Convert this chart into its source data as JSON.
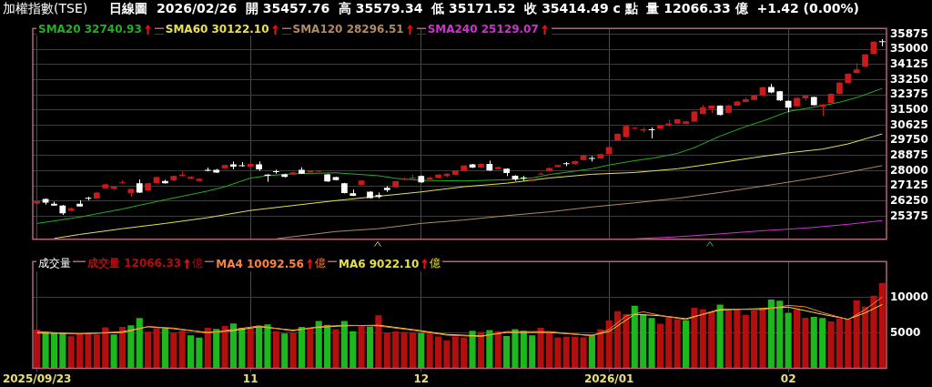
{
  "chart_data": [
    {
      "type": "candlestick",
      "title": "加權指數(TSE)",
      "subtitle": "日線圖  2026/02/26  開 35457.76  高 35579.34  低 35171.52  收 35414.49 c 點  量 12066.33 億  +1.42 (0.00%)",
      "categories": [
        "2025/09/23",
        null,
        null,
        null,
        null,
        null,
        null,
        null,
        null,
        null,
        null,
        null,
        null,
        null,
        null,
        null,
        null,
        null,
        null,
        null,
        null,
        null,
        null,
        null,
        null,
        "11",
        null,
        null,
        null,
        null,
        null,
        null,
        null,
        null,
        null,
        null,
        null,
        null,
        null,
        null,
        null,
        null,
        null,
        null,
        null,
        "12",
        null,
        null,
        null,
        null,
        null,
        null,
        null,
        null,
        null,
        null,
        null,
        null,
        null,
        null,
        null,
        null,
        null,
        null,
        null,
        null,
        null,
        "2026/01",
        null,
        null,
        null,
        null,
        null,
        null,
        null,
        null,
        null,
        null,
        null,
        null,
        null,
        null,
        null,
        null,
        null,
        null,
        null,
        null,
        "02",
        null,
        null,
        null,
        null,
        null,
        null,
        null,
        null,
        null,
        null,
        null
      ],
      "ohlc": [
        [
          26113,
          26280,
          26080,
          26247
        ],
        [
          26380,
          26400,
          26048,
          26163
        ],
        [
          26098,
          26215,
          25980,
          25998
        ],
        [
          25998,
          26020,
          25463,
          25546
        ],
        [
          25697,
          25880,
          25660,
          25830
        ],
        [
          26098,
          26297,
          25930,
          25947
        ],
        [
          26400,
          26497,
          26297,
          26390
        ],
        [
          26397,
          26780,
          26380,
          26747
        ],
        [
          26997,
          27250,
          26960,
          27213
        ],
        [
          26947,
          27100,
          26880,
          27080
        ],
        [
          27280,
          27447,
          27260,
          27330
        ],
        [
          26697,
          26980,
          26497,
          26947
        ],
        [
          27280,
          27497,
          26720,
          26747
        ],
        [
          26864,
          27300,
          26800,
          27280
        ],
        [
          27297,
          27660,
          27280,
          27630
        ],
        [
          27413,
          27480,
          27260,
          27280
        ],
        [
          27430,
          27720,
          27400,
          27697
        ],
        [
          27697,
          27947,
          27680,
          27780
        ],
        [
          27547,
          27680,
          27520,
          27647
        ],
        [
          27413,
          27570,
          27390,
          27547
        ],
        [
          28015,
          28180,
          27965,
          28000
        ],
        [
          28047,
          28100,
          27880,
          27897
        ],
        [
          28147,
          28350,
          28120,
          28330
        ],
        [
          28364,
          28530,
          28080,
          28230
        ],
        [
          28280,
          28497,
          28230,
          28265
        ],
        [
          28230,
          28420,
          28200,
          28397
        ],
        [
          28364,
          28530,
          27997,
          28080
        ],
        [
          27780,
          27800,
          27363,
          27713
        ],
        [
          27930,
          28063,
          27830,
          27920
        ],
        [
          27797,
          27830,
          27620,
          27647
        ],
        [
          27780,
          27940,
          27760,
          27913
        ],
        [
          28047,
          28197,
          27810,
          27830
        ],
        [
          27913,
          28040,
          27890,
          28013
        ],
        [
          27950,
          28000,
          27930,
          27980
        ],
        [
          27797,
          27820,
          27360,
          27380
        ],
        [
          27630,
          27650,
          27440,
          27463
        ],
        [
          27280,
          27300,
          26690,
          26713
        ],
        [
          26697,
          26914,
          26540,
          26564
        ],
        [
          27180,
          27460,
          27160,
          27430
        ],
        [
          26797,
          26820,
          26400,
          26430
        ],
        [
          26597,
          26747,
          26413,
          26497
        ],
        [
          27013,
          27113,
          26780,
          26880
        ],
        [
          27046,
          27420,
          27020,
          27397
        ],
        [
          27480,
          27600,
          27460,
          27547
        ],
        [
          27547,
          27780,
          27530,
          27613
        ],
        [
          27697,
          27720,
          27310,
          27330
        ],
        [
          27497,
          27640,
          27480,
          27613
        ],
        [
          27580,
          27800,
          27560,
          27780
        ],
        [
          27697,
          27850,
          27630,
          27830
        ],
        [
          27763,
          28020,
          27740,
          27997
        ],
        [
          28013,
          28320,
          27990,
          28297
        ],
        [
          28364,
          28390,
          28160,
          28180
        ],
        [
          28180,
          28420,
          28160,
          28397
        ],
        [
          28397,
          28580,
          27990,
          28013
        ],
        [
          28097,
          28240,
          28080,
          28213
        ],
        [
          28113,
          28140,
          27697,
          27863
        ],
        [
          27713,
          27740,
          27413,
          27497
        ],
        [
          27570,
          27697,
          27413,
          27560
        ],
        [
          27413,
          27500,
          27390,
          27480
        ],
        [
          27780,
          27913,
          27760,
          27800
        ],
        [
          27963,
          28190,
          27940,
          28163
        ],
        [
          28213,
          28350,
          28190,
          28330
        ],
        [
          28385,
          28497,
          28263,
          28380
        ],
        [
          28380,
          28570,
          28360,
          28547
        ],
        [
          28613,
          28890,
          28580,
          28864
        ],
        [
          28685,
          28830,
          28530,
          28680
        ],
        [
          28714,
          28990,
          28690,
          28964
        ],
        [
          28964,
          29390,
          28940,
          29364
        ],
        [
          29747,
          30160,
          29720,
          30131
        ],
        [
          29947,
          30610,
          29920,
          30581
        ],
        [
          30430,
          30520,
          30380,
          30450
        ],
        [
          30330,
          30500,
          30200,
          30345
        ],
        [
          30365,
          30500,
          29864,
          30330
        ],
        [
          30431,
          30640,
          30410,
          30614
        ],
        [
          30581,
          30947,
          30560,
          30731
        ],
        [
          30714,
          30990,
          30690,
          30964
        ],
        [
          30697,
          30870,
          30680,
          30847
        ],
        [
          30831,
          31440,
          30810,
          31415
        ],
        [
          31281,
          31798,
          31260,
          31665
        ],
        [
          31565,
          31770,
          31331,
          31748
        ],
        [
          31748,
          31770,
          31190,
          31215
        ],
        [
          31331,
          31790,
          31310,
          31765
        ],
        [
          31748,
          32000,
          31730,
          31981
        ],
        [
          31965,
          32215,
          31945,
          32115
        ],
        [
          32081,
          32370,
          32060,
          32348
        ],
        [
          32348,
          32840,
          32300,
          32815
        ],
        [
          32831,
          32998,
          32465,
          32515
        ],
        [
          32581,
          32600,
          32020,
          32048
        ],
        [
          32031,
          32050,
          31365,
          31631
        ],
        [
          31715,
          32220,
          31690,
          32198
        ],
        [
          32165,
          32350,
          32030,
          32331
        ],
        [
          32248,
          32270,
          31760,
          31781
        ],
        [
          31698,
          31840,
          31165,
          31815
        ],
        [
          31915,
          32460,
          31890,
          32431
        ],
        [
          32431,
          33110,
          32410,
          33081
        ],
        [
          33048,
          33610,
          33020,
          33582
        ],
        [
          33632,
          34198,
          33610,
          33832
        ],
        [
          34000,
          34730,
          33980,
          34698
        ],
        [
          34732,
          35460,
          34710,
          35432
        ],
        [
          35457.76,
          35579.34,
          35171.52,
          35414.49
        ]
      ],
      "colors": [
        "#cc1a1a",
        "#ffffff",
        "#ffffff",
        "#ffffff",
        "#cc1a1a",
        "#ffffff",
        "#ffffff",
        "#cc1a1a",
        "#cc1a1a",
        "#cc1a1a",
        "#cc1a1a",
        "#cc1a1a",
        "#ffffff",
        "#cc1a1a",
        "#cc1a1a",
        "#ffffff",
        "#cc1a1a",
        "#cc1a1a",
        "#cc1a1a",
        "#cc1a1a",
        "#ffffff",
        "#ffffff",
        "#cc1a1a",
        "#ffffff",
        "#ffffff",
        "#cc1a1a",
        "#ffffff",
        "#ffffff",
        "#ffffff",
        "#ffffff",
        "#cc1a1a",
        "#ffffff",
        "#cc1a1a",
        "#cc1a1a",
        "#ffffff",
        "#ffffff",
        "#ffffff",
        "#ffffff",
        "#cc1a1a",
        "#ffffff",
        "#ffffff",
        "#ffffff",
        "#cc1a1a",
        "#cc1a1a",
        "#cc1a1a",
        "#ffffff",
        "#cc1a1a",
        "#cc1a1a",
        "#cc1a1a",
        "#cc1a1a",
        "#cc1a1a",
        "#ffffff",
        "#cc1a1a",
        "#ffffff",
        "#cc1a1a",
        "#ffffff",
        "#ffffff",
        "#ffffff",
        "#cc1a1a",
        "#cc1a1a",
        "#cc1a1a",
        "#cc1a1a",
        "#ffffff",
        "#cc1a1a",
        "#cc1a1a",
        "#ffffff",
        "#cc1a1a",
        "#cc1a1a",
        "#cc1a1a",
        "#cc1a1a",
        "#cc1a1a",
        "#cc1a1a",
        "#ffffff",
        "#cc1a1a",
        "#cc1a1a",
        "#cc1a1a",
        "#cc1a1a",
        "#cc1a1a",
        "#cc1a1a",
        "#cc1a1a",
        "#ffffff",
        "#cc1a1a",
        "#cc1a1a",
        "#cc1a1a",
        "#cc1a1a",
        "#cc1a1a",
        "#ffffff",
        "#ffffff",
        "#ffffff",
        "#cc1a1a",
        "#cc1a1a",
        "#ffffff",
        "#cc1a1a",
        "#cc1a1a",
        "#cc1a1a",
        "#cc1a1a",
        "#cc1a1a",
        "#cc1a1a",
        "#cc1a1a",
        "#ffffff"
      ],
      "series": [
        {
          "name": "SMA20 32740.93",
          "type": "line",
          "color": "#22b022",
          "values": [
            24963,
            null,
            null,
            null,
            null,
            25330,
            null,
            null,
            null,
            null,
            25797,
            null,
            null,
            null,
            null,
            26330,
            null,
            null,
            null,
            null,
            26830,
            null,
            27080,
            null,
            null,
            27580,
            null,
            27713,
            null,
            null,
            27830,
            null,
            null,
            null,
            null,
            27880,
            null,
            null,
            null,
            null,
            27713,
            null,
            27563,
            null,
            null,
            27447,
            null,
            null,
            null,
            null,
            27413,
            null,
            null,
            null,
            null,
            27480,
            null,
            null,
            27580,
            null,
            27780,
            null,
            null,
            null,
            null,
            28113,
            null,
            28330,
            null,
            null,
            28580,
            null,
            28714,
            null,
            null,
            28997,
            null,
            29330,
            null,
            null,
            29997,
            null,
            null,
            30547,
            null,
            30864,
            null,
            null,
            31415,
            null,
            31581,
            null,
            31748,
            null,
            31948,
            null,
            32215,
            null,
            null,
            32740.93
          ]
        },
        {
          "name": "SMA60 30122.10",
          "type": "line",
          "color": "#e8e050",
          "values": [
            null,
            null,
            24100,
            null,
            null,
            24330,
            null,
            null,
            null,
            null,
            24663,
            null,
            null,
            null,
            null,
            24963,
            null,
            null,
            null,
            null,
            25297,
            null,
            null,
            null,
            null,
            25713,
            null,
            null,
            null,
            null,
            25997,
            null,
            null,
            null,
            null,
            26280,
            null,
            null,
            null,
            null,
            26530,
            null,
            null,
            null,
            null,
            26780,
            null,
            null,
            null,
            null,
            27080,
            null,
            null,
            null,
            null,
            27280,
            null,
            null,
            null,
            null,
            27580,
            null,
            null,
            null,
            null,
            27797,
            null,
            null,
            null,
            null,
            27900,
            null,
            null,
            null,
            null,
            28113,
            null,
            null,
            null,
            null,
            28463,
            null,
            null,
            null,
            null,
            28830,
            null,
            null,
            29030,
            null,
            null,
            null,
            29247,
            null,
            null,
            29547,
            null,
            null,
            null,
            30122.1
          ]
        },
        {
          "name": "SMA120 28296.51",
          "type": "line",
          "color": "#b08a62",
          "values": [
            null,
            null,
            null,
            null,
            null,
            null,
            null,
            null,
            null,
            null,
            null,
            null,
            null,
            null,
            null,
            null,
            null,
            null,
            null,
            null,
            null,
            null,
            null,
            null,
            null,
            null,
            null,
            null,
            24080,
            null,
            24200,
            null,
            null,
            null,
            null,
            24498,
            null,
            null,
            null,
            null,
            24663,
            null,
            null,
            null,
            null,
            24963,
            null,
            null,
            null,
            null,
            25163,
            null,
            null,
            null,
            null,
            25413,
            null,
            null,
            null,
            null,
            25630,
            null,
            null,
            null,
            null,
            25913,
            null,
            null,
            null,
            null,
            26150,
            null,
            null,
            null,
            null,
            26413,
            null,
            null,
            null,
            null,
            26747,
            null,
            null,
            null,
            null,
            27113,
            null,
            null,
            null,
            null,
            27497,
            null,
            null,
            null,
            null,
            27913,
            null,
            null,
            null,
            28296.51
          ]
        },
        {
          "name": "SMA240 25129.07",
          "type": "line",
          "color": "#d030d0",
          "values": [
            null,
            null,
            null,
            null,
            null,
            null,
            null,
            null,
            null,
            null,
            null,
            null,
            null,
            null,
            null,
            null,
            null,
            null,
            null,
            null,
            null,
            null,
            null,
            null,
            null,
            null,
            null,
            null,
            null,
            null,
            null,
            null,
            null,
            null,
            null,
            null,
            null,
            null,
            null,
            null,
            null,
            null,
            null,
            null,
            null,
            null,
            null,
            null,
            null,
            null,
            null,
            null,
            null,
            null,
            null,
            null,
            null,
            null,
            null,
            null,
            null,
            null,
            null,
            null,
            null,
            null,
            null,
            null,
            null,
            null,
            24080,
            null,
            null,
            null,
            null,
            24196,
            null,
            null,
            null,
            null,
            24363,
            null,
            null,
            null,
            null,
            24546,
            null,
            null,
            null,
            null,
            24696,
            null,
            null,
            null,
            null,
            24913,
            null,
            null,
            null,
            25129.07
          ]
        }
      ],
      "ylim": [
        24050,
        36200
      ],
      "yticks": [
        25375,
        26250,
        27125,
        28000,
        28875,
        29750,
        30625,
        31500,
        32375,
        33250,
        34125,
        35000,
        35875
      ],
      "grid": true,
      "legend": "top left",
      "tick_labels": "y"
    },
    {
      "type": "bar",
      "title": "成交量",
      "ylabel": "億",
      "categories": [
        "2025/09/23",
        null,
        null,
        null,
        null,
        null,
        null,
        null,
        null,
        null,
        null,
        null,
        null,
        null,
        null,
        null,
        null,
        null,
        null,
        null,
        null,
        null,
        null,
        null,
        null,
        "11",
        null,
        null,
        null,
        null,
        null,
        null,
        null,
        null,
        null,
        null,
        null,
        null,
        null,
        null,
        null,
        null,
        null,
        null,
        null,
        "12",
        null,
        null,
        null,
        null,
        null,
        null,
        null,
        null,
        null,
        null,
        null,
        null,
        null,
        null,
        null,
        null,
        null,
        null,
        null,
        null,
        null,
        "2026/01",
        null,
        null,
        null,
        null,
        null,
        null,
        null,
        null,
        null,
        null,
        null,
        null,
        null,
        null,
        null,
        null,
        null,
        null,
        null,
        null,
        "02",
        null,
        null,
        null,
        null,
        null,
        null,
        null,
        null,
        null,
        null,
        null
      ],
      "series": [
        {
          "name": "成交量 12066.33",
          "color": "#b30f0f",
          "values": [
            5490,
            5200,
            5080,
            5080,
            4550,
            4800,
            5080,
            4800,
            5810,
            4800,
            5850,
            6100,
            7110,
            5200,
            5690,
            5610,
            5000,
            5330,
            4680,
            4350,
            5730,
            5570,
            5980,
            6340,
            5730,
            5810,
            6020,
            6220,
            5240,
            4920,
            5080,
            5850,
            5810,
            6710,
            6140,
            5530,
            6710,
            5240,
            6060,
            5890,
            7520,
            5000,
            5240,
            5160,
            5080,
            5000,
            4920,
            4510,
            3980,
            4510,
            4350,
            5330,
            5160,
            5410,
            5240,
            4590,
            5530,
            5330,
            4680,
            5730,
            5080,
            4390,
            4470,
            4470,
            4390,
            4760,
            5530,
            6750,
            8090,
            7680,
            8860,
            7640,
            7110,
            6300,
            7360,
            6950,
            6790,
            8580,
            8330,
            8010,
            9020,
            8250,
            8330,
            7560,
            8170,
            8580,
            9720,
            9550,
            7850,
            8330,
            7160,
            7280,
            7110,
            6630,
            7030,
            6950,
            9630,
            8740,
            10280,
            12066.33
          ],
          "colors": [
            "#b30f0f",
            "#1db81d",
            "#1db81d",
            "#1db81d",
            "#b30f0f",
            "#b30f0f",
            "#b30f0f",
            "#b30f0f",
            "#b30f0f",
            "#1db81d",
            "#b30f0f",
            "#1db81d",
            "#1db81d",
            "#b30f0f",
            "#b30f0f",
            "#1db81d",
            "#b30f0f",
            "#b30f0f",
            "#1db81d",
            "#1db81d",
            "#b30f0f",
            "#1db81d",
            "#b30f0f",
            "#1db81d",
            "#1db81d",
            "#b30f0f",
            "#1db81d",
            "#1db81d",
            "#b30f0f",
            "#1db81d",
            "#b30f0f",
            "#1db81d",
            "#b30f0f",
            "#1db81d",
            "#1db81d",
            "#b30f0f",
            "#1db81d",
            "#1db81d",
            "#b30f0f",
            "#1db81d",
            "#b30f0f",
            "#b30f0f",
            "#b30f0f",
            "#b30f0f",
            "#b30f0f",
            "#1db81d",
            "#b30f0f",
            "#b30f0f",
            "#b30f0f",
            "#b30f0f",
            "#b30f0f",
            "#1db81d",
            "#b30f0f",
            "#1db81d",
            "#b30f0f",
            "#1db81d",
            "#1db81d",
            "#1db81d",
            "#1db81d",
            "#b30f0f",
            "#b30f0f",
            "#b30f0f",
            "#b30f0f",
            "#b30f0f",
            "#b30f0f",
            "#1db81d",
            "#b30f0f",
            "#b30f0f",
            "#b30f0f",
            "#b30f0f",
            "#1db81d",
            "#1db81d",
            "#1db81d",
            "#b30f0f",
            "#b30f0f",
            "#b30f0f",
            "#1db81d",
            "#b30f0f",
            "#b30f0f",
            "#b30f0f",
            "#1db81d",
            "#b30f0f",
            "#b30f0f",
            "#b30f0f",
            "#b30f0f",
            "#b30f0f",
            "#1db81d",
            "#1db81d",
            "#1db81d",
            "#b30f0f",
            "#b30f0f",
            "#1db81d",
            "#1db81d",
            "#b30f0f",
            "#b30f0f",
            "#b30f0f",
            "#b30f0f",
            "#b30f0f",
            "#b30f0f",
            "#b30f0f"
          ]
        },
        {
          "name": "MA4 10092.56",
          "type": "line",
          "color": "#ff7f3f",
          "values": [
            5200,
            null,
            null,
            null,
            null,
            4850,
            null,
            null,
            null,
            null,
            5200,
            null,
            null,
            5900,
            null,
            null,
            5700,
            null,
            null,
            null,
            5000,
            null,
            null,
            5500,
            null,
            null,
            6000,
            null,
            null,
            null,
            5300,
            null,
            null,
            5900,
            null,
            null,
            6100,
            null,
            null,
            null,
            6000,
            null,
            null,
            null,
            5400,
            null,
            null,
            null,
            4700,
            null,
            null,
            null,
            4500,
            null,
            null,
            5200,
            null,
            null,
            null,
            null,
            5200,
            null,
            null,
            null,
            null,
            4600,
            null,
            5500,
            null,
            7400,
            null,
            8000,
            null,
            7500,
            null,
            null,
            6900,
            null,
            null,
            null,
            8400,
            null,
            null,
            null,
            null,
            8300,
            null,
            null,
            8900,
            null,
            8700,
            null,
            7900,
            null,
            null,
            6900,
            null,
            8300,
            null,
            10092.56
          ]
        },
        {
          "name": "MA6 9022.10",
          "type": "line",
          "color": "#e8e040",
          "values": [
            5000,
            null,
            null,
            null,
            null,
            4920,
            null,
            null,
            null,
            null,
            5080,
            null,
            null,
            5890,
            null,
            null,
            5610,
            null,
            null,
            null,
            5080,
            null,
            null,
            5330,
            null,
            null,
            5890,
            null,
            null,
            null,
            5410,
            null,
            null,
            5810,
            null,
            null,
            6020,
            null,
            null,
            null,
            6100,
            null,
            null,
            null,
            5490,
            null,
            null,
            null,
            4800,
            null,
            null,
            null,
            4590,
            null,
            null,
            5080,
            null,
            null,
            null,
            null,
            5080,
            null,
            null,
            null,
            null,
            4680,
            null,
            5200,
            null,
            null,
            7640,
            null,
            null,
            7440,
            null,
            null,
            7030,
            null,
            null,
            null,
            8250,
            null,
            null,
            null,
            null,
            8460,
            null,
            null,
            8660,
            null,
            null,
            null,
            7640,
            null,
            null,
            6950,
            null,
            7850,
            null,
            9022.1
          ]
        }
      ],
      "ylim": [
        0,
        15100
      ],
      "yticks": [
        5000,
        10000
      ],
      "grid": true,
      "legend": "top left"
    }
  ]
}
